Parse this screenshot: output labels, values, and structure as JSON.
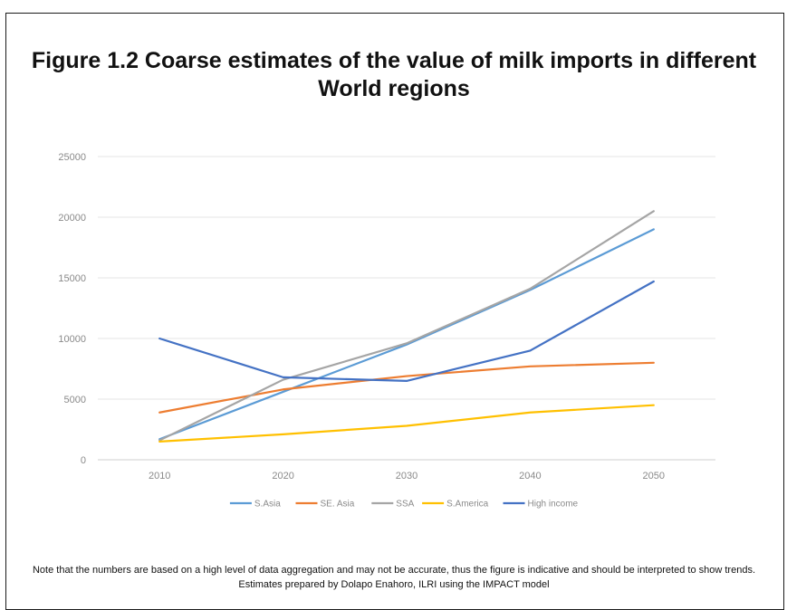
{
  "title": "Figure 1.2 Coarse estimates of the value of milk imports in different World regions",
  "note": "Note that the numbers are based on a high level of data aggregation and may not be accurate, thus the figure is indicative and should be interpreted to show trends. Estimates prepared by Dolapo Enahoro, ILRI using the IMPACT model",
  "chart_data": {
    "type": "line",
    "title": "Figure 1.2 Coarse estimates of the value of milk imports in different World regions",
    "xlabel": "",
    "ylabel": "",
    "categories": [
      "2010",
      "2020",
      "2030",
      "2040",
      "2050"
    ],
    "ylim": [
      0,
      25000
    ],
    "yticks": [
      0,
      5000,
      10000,
      15000,
      20000,
      25000
    ],
    "grid": true,
    "legend": "bottom",
    "series": [
      {
        "name": "S.Asia",
        "color": "#5b9bd5",
        "values": [
          1700,
          5600,
          9500,
          14000,
          19000
        ]
      },
      {
        "name": "SE. Asia",
        "color": "#ed7d31",
        "values": [
          3900,
          5800,
          6900,
          7700,
          8000
        ]
      },
      {
        "name": "SSA",
        "color": "#a5a5a5",
        "values": [
          1600,
          6600,
          9600,
          14100,
          20500
        ]
      },
      {
        "name": "S.America",
        "color": "#ffc000",
        "values": [
          1500,
          2100,
          2800,
          3900,
          4500
        ]
      },
      {
        "name": "High income",
        "color": "#4472c4",
        "values": [
          10000,
          6800,
          6500,
          9000,
          14700
        ]
      }
    ]
  }
}
